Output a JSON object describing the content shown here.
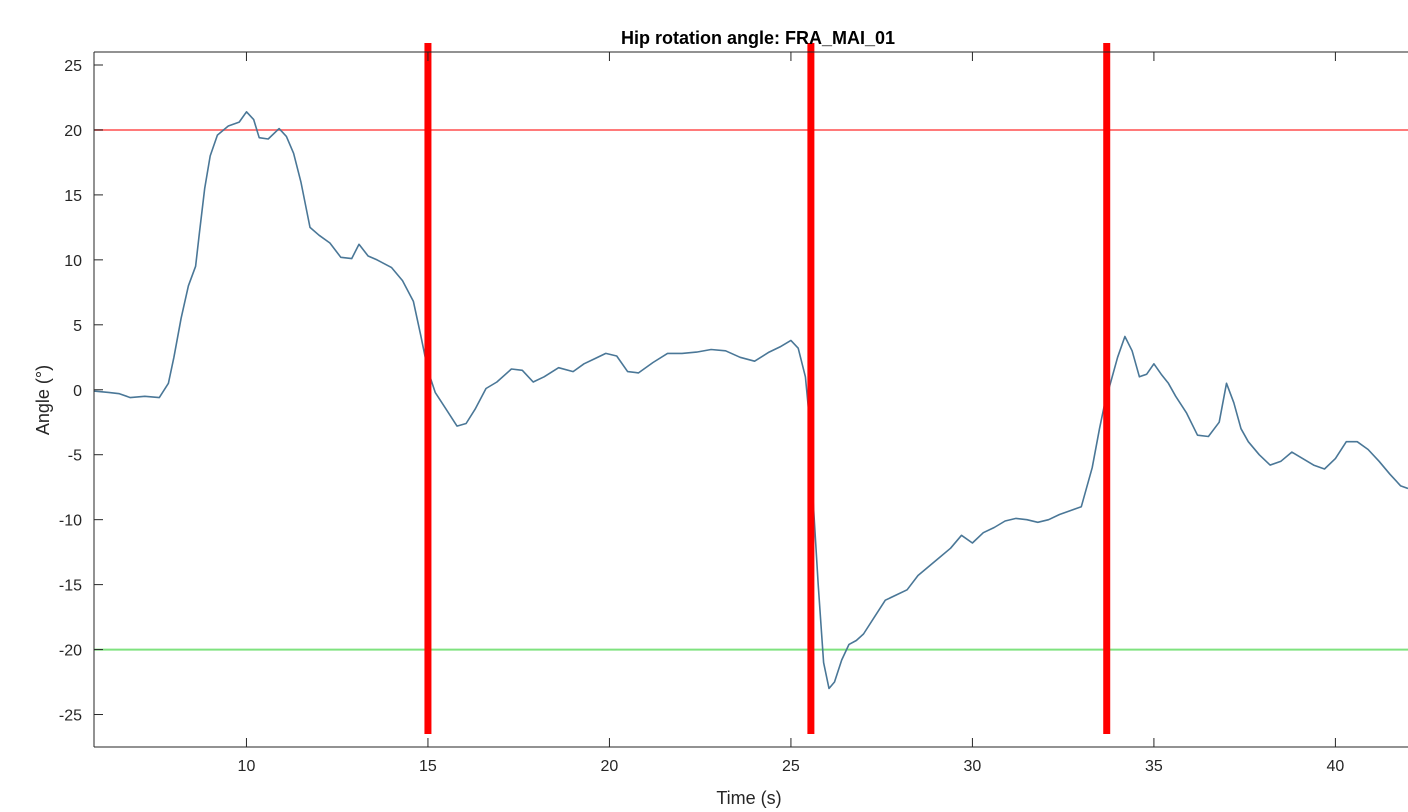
{
  "chart_data": {
    "type": "line",
    "title": "Hip rotation angle: FRA_MAI_01",
    "xlabel": "Time (s)",
    "ylabel": "Angle (°)",
    "xlim": [
      5.8,
      42
    ],
    "ylim": [
      -27.5,
      26
    ],
    "xticks": [
      10,
      15,
      20,
      25,
      30,
      35,
      40
    ],
    "yticks": [
      25,
      20,
      15,
      10,
      5,
      0,
      -5,
      -10,
      -15,
      -20,
      -25
    ],
    "grid": false,
    "series": [
      {
        "color": "#4a7797",
        "x": [
          5.8,
          6.2,
          6.5,
          6.8,
          7.2,
          7.6,
          7.85,
          8.0,
          8.2,
          8.4,
          8.6,
          8.7,
          8.85,
          9.0,
          9.2,
          9.5,
          9.8,
          10.0,
          10.2,
          10.35,
          10.6,
          10.9,
          11.1,
          11.3,
          11.5,
          11.75,
          12.0,
          12.3,
          12.6,
          12.9,
          13.1,
          13.35,
          13.6,
          14.0,
          14.3,
          14.6,
          14.8,
          15.0,
          15.2,
          15.5,
          15.8,
          16.05,
          16.3,
          16.6,
          16.9,
          17.3,
          17.6,
          17.9,
          18.2,
          18.6,
          19.0,
          19.3,
          19.6,
          19.9,
          20.2,
          20.5,
          20.8,
          21.2,
          21.6,
          22.0,
          22.4,
          22.8,
          23.2,
          23.6,
          24.0,
          24.4,
          24.7,
          25.0,
          25.2,
          25.4,
          25.5,
          25.6,
          25.75,
          25.9,
          26.05,
          26.2,
          26.4,
          26.6,
          26.8,
          27.0,
          27.3,
          27.6,
          27.9,
          28.2,
          28.5,
          28.8,
          29.1,
          29.4,
          29.7,
          30.0,
          30.3,
          30.6,
          30.9,
          31.2,
          31.5,
          31.8,
          32.1,
          32.4,
          32.7,
          33.0,
          33.3,
          33.5,
          33.65,
          33.8,
          34.0,
          34.2,
          34.4,
          34.6,
          34.8,
          35.0,
          35.2,
          35.4,
          35.6,
          35.9,
          36.2,
          36.5,
          36.8,
          37.0,
          37.2,
          37.4,
          37.6,
          37.9,
          38.2,
          38.5,
          38.8,
          39.1,
          39.4,
          39.7,
          40.0,
          40.3,
          40.6,
          40.9,
          41.2,
          41.5,
          41.8,
          42.0
        ],
        "y": [
          -0.1,
          -0.2,
          -0.3,
          -0.6,
          -0.5,
          -0.6,
          0.5,
          2.5,
          5.5,
          8.0,
          9.5,
          12.0,
          15.5,
          18.0,
          19.6,
          20.3,
          20.6,
          21.4,
          20.8,
          19.4,
          19.3,
          20.1,
          19.5,
          18.2,
          16.0,
          12.5,
          11.9,
          11.3,
          10.2,
          10.1,
          11.2,
          10.3,
          10.0,
          9.4,
          8.4,
          6.8,
          4.2,
          1.5,
          -0.2,
          -1.5,
          -2.8,
          -2.6,
          -1.5,
          0.1,
          0.6,
          1.6,
          1.5,
          0.6,
          1.0,
          1.7,
          1.4,
          2.0,
          2.4,
          2.8,
          2.6,
          1.4,
          1.3,
          2.1,
          2.8,
          2.8,
          2.9,
          3.1,
          3.0,
          2.5,
          2.2,
          2.9,
          3.3,
          3.8,
          3.2,
          1.0,
          -2.0,
          -8.0,
          -15.0,
          -21.0,
          -23.0,
          -22.5,
          -20.8,
          -19.6,
          -19.3,
          -18.8,
          -17.5,
          -16.2,
          -15.8,
          -15.4,
          -14.3,
          -13.6,
          -12.9,
          -12.2,
          -11.2,
          -11.8,
          -11.0,
          -10.6,
          -10.1,
          -9.9,
          -10.0,
          -10.2,
          -10.0,
          -9.6,
          -9.3,
          -9.0,
          -6.0,
          -3.0,
          -1.0,
          0.5,
          2.5,
          4.1,
          3.0,
          1.0,
          1.2,
          2.0,
          1.2,
          0.5,
          -0.5,
          -1.8,
          -3.5,
          -3.6,
          -2.5,
          0.5,
          -1.0,
          -3.0,
          -4.0,
          -5.0,
          -5.8,
          -5.5,
          -4.8,
          -5.3,
          -5.8,
          -6.1,
          -5.3,
          -4.0,
          -4.0,
          -4.6,
          -5.5,
          -6.5,
          -7.4,
          -7.6
        ]
      }
    ],
    "reference_lines": [
      {
        "y": 20,
        "color": "#ff7a7a"
      },
      {
        "y": -20,
        "color": "#7fe27f"
      }
    ],
    "event_markers": [
      {
        "x": 15.0,
        "color": "#ff0000"
      },
      {
        "x": 25.55,
        "color": "#ff0000"
      },
      {
        "x": 33.7,
        "color": "#ff0000"
      }
    ]
  }
}
